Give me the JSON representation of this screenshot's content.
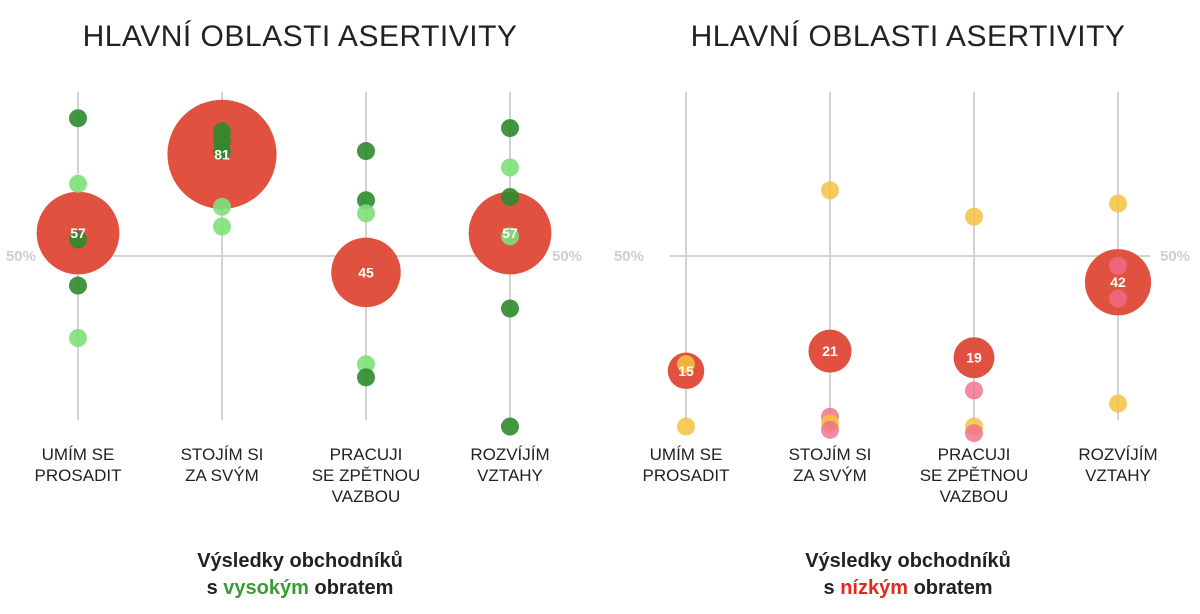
{
  "colors": {
    "bubble": "#e0523f",
    "dark_green": "#2e8b2e",
    "light_green": "#7ee07a",
    "yellow": "#f5c242",
    "pink": "#f26b8a",
    "axis": "#d3d3d3"
  },
  "chart_data": [
    {
      "type": "scatter",
      "title": "HLAVNÍ OBLASTI ASERTIVITY",
      "categories": [
        "UMÍM SE PROSADIT",
        "STOJÍM SI ZA SVÝM",
        "PRACUJI SE ZPĚTNOU VAZBOU",
        "ROZVÍJÍM VZTAHY"
      ],
      "reference_label": "50%",
      "averages": [
        57,
        81,
        45,
        57
      ],
      "points": [
        {
          "category": 0,
          "value": 92,
          "color": "dark_green"
        },
        {
          "category": 0,
          "value": 72,
          "color": "light_green"
        },
        {
          "category": 0,
          "value": 55,
          "color": "dark_green"
        },
        {
          "category": 0,
          "value": 41,
          "color": "dark_green"
        },
        {
          "category": 0,
          "value": 25,
          "color": "light_green"
        },
        {
          "category": 1,
          "value": 88,
          "color": "dark_green"
        },
        {
          "category": 1,
          "value": 85,
          "color": "dark_green"
        },
        {
          "category": 1,
          "value": 82,
          "color": "dark_green"
        },
        {
          "category": 1,
          "value": 65,
          "color": "light_green"
        },
        {
          "category": 1,
          "value": 59,
          "color": "light_green"
        },
        {
          "category": 2,
          "value": 82,
          "color": "dark_green"
        },
        {
          "category": 2,
          "value": 67,
          "color": "dark_green"
        },
        {
          "category": 2,
          "value": 63,
          "color": "light_green"
        },
        {
          "category": 2,
          "value": 17,
          "color": "light_green"
        },
        {
          "category": 2,
          "value": 13,
          "color": "dark_green"
        },
        {
          "category": 3,
          "value": 89,
          "color": "dark_green"
        },
        {
          "category": 3,
          "value": 77,
          "color": "light_green"
        },
        {
          "category": 3,
          "value": 68,
          "color": "dark_green"
        },
        {
          "category": 3,
          "value": 56,
          "color": "light_green"
        },
        {
          "category": 3,
          "value": 34,
          "color": "dark_green"
        },
        {
          "category": 3,
          "value": -2,
          "color": "dark_green"
        }
      ],
      "caption": {
        "line1": "Výsledky obchodníků",
        "prefix": "s ",
        "highlight": "vysokým",
        "suffix": " obratem",
        "highlight_color": "#3b9b35"
      }
    },
    {
      "type": "scatter",
      "title": "HLAVNÍ OBLASTI ASERTIVITY",
      "categories": [
        "UMÍM SE PROSADIT",
        "STOJÍM SI ZA SVÝM",
        "PRACUJI SE ZPĚTNOU VAZBOU",
        "ROZVÍJÍM VZTAHY"
      ],
      "reference_label": "50%",
      "averages": [
        15,
        21,
        19,
        42
      ],
      "points": [
        {
          "category": 0,
          "value": 17,
          "color": "yellow"
        },
        {
          "category": 0,
          "value": -2,
          "color": "yellow"
        },
        {
          "category": 1,
          "value": 70,
          "color": "yellow"
        },
        {
          "category": 1,
          "value": 1,
          "color": "pink"
        },
        {
          "category": 1,
          "value": -1,
          "color": "yellow"
        },
        {
          "category": 1,
          "value": -3,
          "color": "pink"
        },
        {
          "category": 2,
          "value": 62,
          "color": "yellow"
        },
        {
          "category": 2,
          "value": 9,
          "color": "pink"
        },
        {
          "category": 2,
          "value": -2,
          "color": "yellow"
        },
        {
          "category": 2,
          "value": -4,
          "color": "pink"
        },
        {
          "category": 3,
          "value": 66,
          "color": "yellow"
        },
        {
          "category": 3,
          "value": 47,
          "color": "pink"
        },
        {
          "category": 3,
          "value": 37,
          "color": "pink"
        },
        {
          "category": 3,
          "value": 5,
          "color": "yellow"
        }
      ],
      "caption": {
        "line1": "Výsledky obchodníků",
        "prefix": "s ",
        "highlight": "nízkým",
        "suffix": " obratem",
        "highlight_color": "#e02a1e"
      }
    }
  ]
}
